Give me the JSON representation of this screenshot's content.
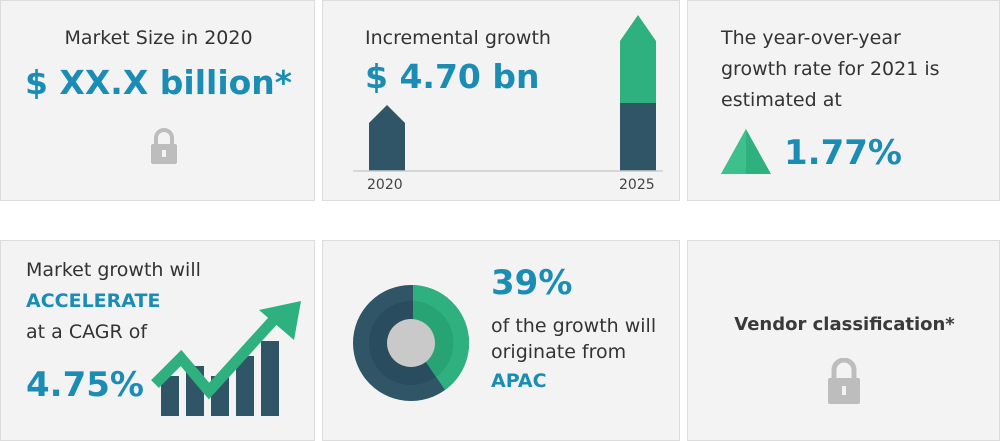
{
  "colors": {
    "accent": "#1b8db5",
    "dark": "#2f5567",
    "green": "#2fb07f",
    "lock": "#bdbdbd"
  },
  "market_size": {
    "label": "Market Size in 2020",
    "value": "$ XX.X billion*",
    "icon": "lock-icon"
  },
  "incremental": {
    "label": "Incremental growth",
    "value": "$ 4.70 bn",
    "year_start": "2020",
    "year_end": "2025"
  },
  "yoy": {
    "line1": "The year-over-year",
    "line2": "growth rate for 2021 is",
    "line3": "estimated at",
    "value": "1.77%",
    "icon": "triangle-up-icon"
  },
  "cagr": {
    "line1": "Market growth will",
    "emphasis": "ACCELERATE",
    "line3": "at a CAGR of",
    "value": "4.75%",
    "icon": "growth-arrow-chart-icon"
  },
  "region": {
    "value": "39%",
    "line1": "of the growth will",
    "line2": "originate from",
    "region": "APAC",
    "share": 0.39,
    "icon": "donut-chart-icon"
  },
  "vendor": {
    "label": "Vendor classification*",
    "icon": "lock-icon"
  }
}
